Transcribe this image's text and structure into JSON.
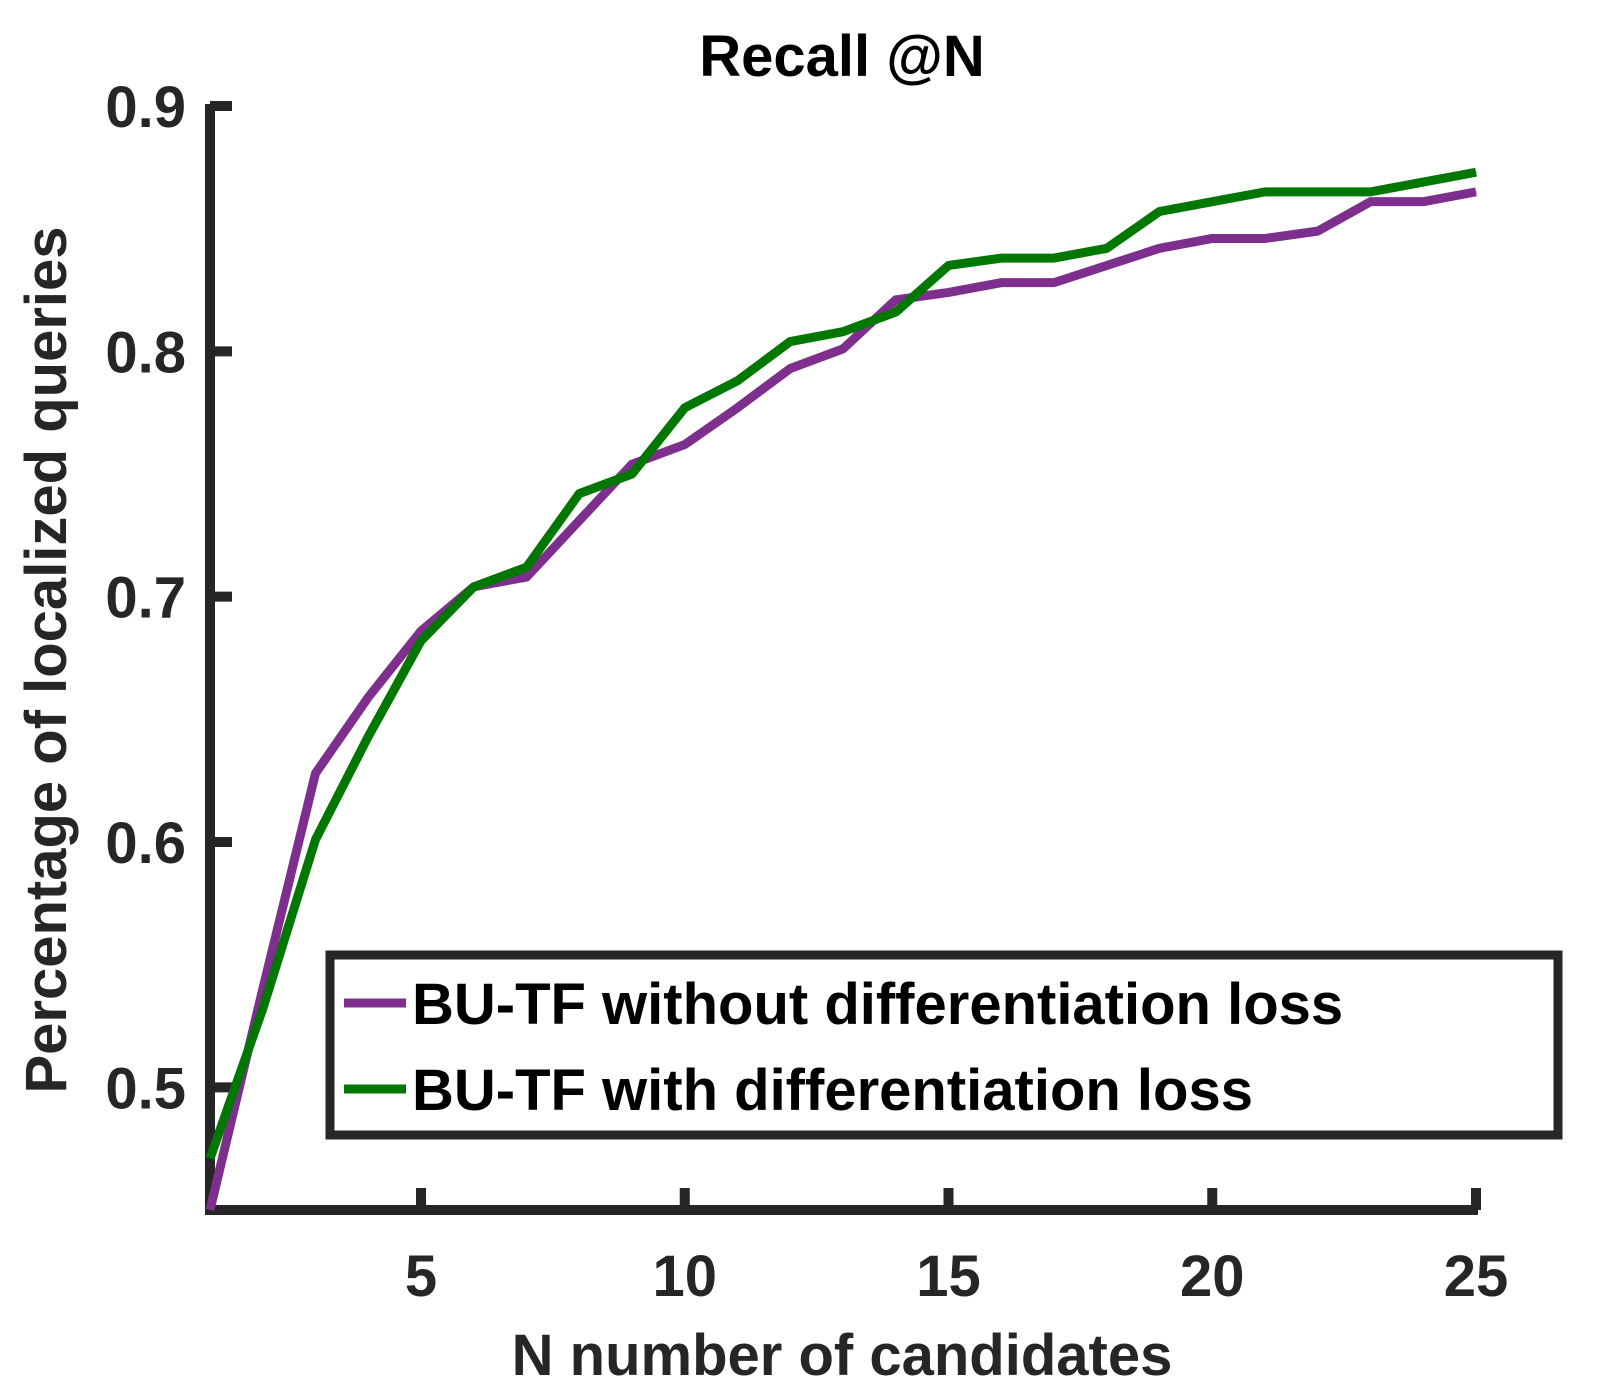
{
  "colors": {
    "axis": "#262626",
    "series_purple": "#7E2F8E",
    "series_green": "#007700",
    "legend_border": "#262626"
  },
  "chart_data": {
    "type": "line",
    "title": "Recall @N",
    "xlabel": "N number of candidates",
    "ylabel": "Percentage of localized queries",
    "xlim": [
      1,
      25
    ],
    "ylim": [
      0.45,
      0.9
    ],
    "xticks": [
      5,
      10,
      15,
      20,
      25
    ],
    "xtick_labels": [
      "5",
      "10",
      "15",
      "20",
      "25"
    ],
    "yticks": [
      0.5,
      0.6,
      0.7,
      0.8,
      0.9
    ],
    "ytick_labels": [
      "0.5",
      "0.6",
      "0.7",
      "0.8",
      "0.9"
    ],
    "grid": false,
    "legend_position": "bottom-right",
    "x": [
      1,
      2,
      3,
      4,
      5,
      6,
      7,
      8,
      9,
      10,
      11,
      12,
      13,
      14,
      15,
      16,
      17,
      18,
      19,
      20,
      21,
      22,
      23,
      24,
      25
    ],
    "series": [
      {
        "name": "BU-TF without differentiation loss",
        "color": "#7E2F8E",
        "values": [
          0.45,
          0.54,
          0.628,
          0.659,
          0.686,
          0.704,
          0.708,
          0.731,
          0.754,
          0.762,
          0.777,
          0.793,
          0.801,
          0.821,
          0.824,
          0.828,
          0.828,
          0.835,
          0.842,
          0.846,
          0.846,
          0.849,
          0.861,
          0.861,
          0.865
        ]
      },
      {
        "name": "BU-TF with differentiation loss",
        "color": "#007700",
        "values": [
          0.471,
          0.532,
          0.601,
          0.643,
          0.682,
          0.704,
          0.712,
          0.742,
          0.75,
          0.777,
          0.788,
          0.804,
          0.808,
          0.816,
          0.835,
          0.838,
          0.838,
          0.842,
          0.857,
          0.861,
          0.865,
          0.865,
          0.865,
          0.869,
          0.873
        ]
      }
    ]
  }
}
